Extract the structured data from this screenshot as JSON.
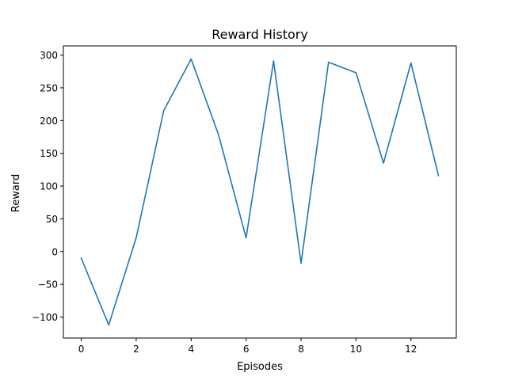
{
  "chart_data": {
    "type": "line",
    "title": "Reward History",
    "xlabel": "Episodes",
    "ylabel": "Reward",
    "xlim": [
      -0.65,
      13.65
    ],
    "ylim": [
      -132,
      314
    ],
    "xticks": [
      0,
      2,
      4,
      6,
      8,
      10,
      12
    ],
    "xtick_labels": [
      "0",
      "2",
      "4",
      "6",
      "8",
      "10",
      "12"
    ],
    "yticks": [
      -100,
      -50,
      0,
      50,
      100,
      150,
      200,
      250,
      300
    ],
    "ytick_labels": [
      "−100",
      "−50",
      "0",
      "50",
      "100",
      "150",
      "200",
      "250",
      "300"
    ],
    "grid": false,
    "series": [
      {
        "color": "#1f77b4",
        "x": [
          0,
          1,
          2,
          3,
          4,
          5,
          6,
          7,
          8,
          9,
          10,
          11,
          12,
          13
        ],
        "y": [
          -10,
          -112,
          21,
          215,
          294,
          178,
          21,
          291,
          -18,
          289,
          273,
          135,
          288,
          116
        ]
      }
    ]
  }
}
